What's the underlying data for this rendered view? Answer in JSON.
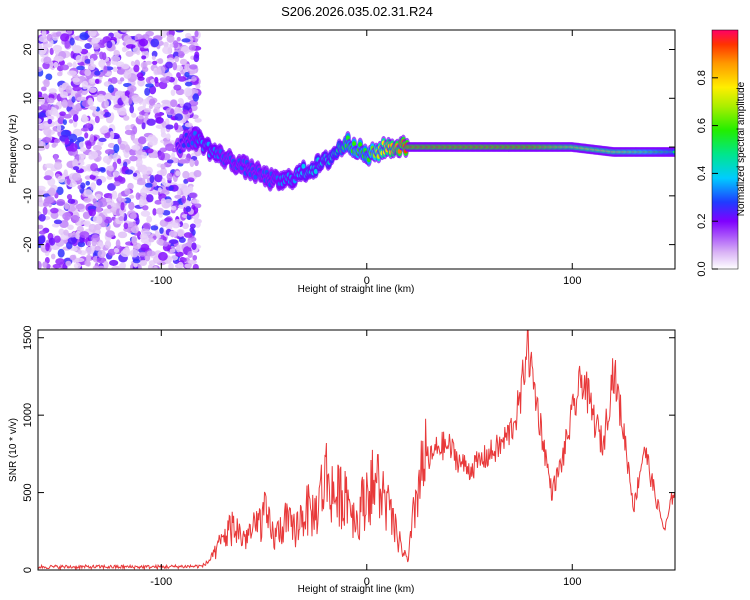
{
  "title": "S206.2026.035.02.31.R24",
  "chart_data": [
    {
      "type": "heatmap",
      "title": "S206.2026.035.02.31.R24",
      "xlabel": "Height of straight line (km)",
      "ylabel": "Frequency (Hz)",
      "xlim": [
        -160,
        150
      ],
      "ylim": [
        -25,
        24
      ],
      "xticks": [
        -100,
        0,
        100
      ],
      "yticks": [
        -20,
        -10,
        0,
        10,
        20
      ],
      "noise_region_x": [
        -160,
        -82
      ],
      "ridge": {
        "x": [
          -92,
          -85,
          -80,
          -75,
          -70,
          -65,
          -60,
          -55,
          -50,
          -45,
          -40,
          -35,
          -30,
          -25,
          -20,
          -15,
          -10,
          -5,
          0,
          5,
          10,
          20,
          40,
          60,
          80,
          100,
          120,
          140,
          150
        ],
        "freq": [
          0,
          2,
          1,
          -1,
          -2,
          -3,
          -4,
          -5,
          -6,
          -7,
          -7,
          -6,
          -5,
          -4,
          -3,
          -1,
          1,
          0,
          -2,
          -1,
          0,
          0,
          0,
          0,
          0,
          0,
          -1,
          -1,
          -1
        ],
        "amplitude": [
          0.25,
          0.3,
          0.35,
          0.35,
          0.3,
          0.3,
          0.3,
          0.3,
          0.3,
          0.3,
          0.35,
          0.35,
          0.4,
          0.4,
          0.4,
          0.45,
          0.55,
          0.6,
          0.55,
          0.7,
          0.8,
          0.95,
          0.95,
          0.95,
          0.95,
          0.8,
          0.75,
          0.6,
          0.5
        ]
      },
      "colorbar": {
        "label": "Normalized spectral amplitude",
        "range": [
          0,
          1
        ],
        "ticks": [
          0.0,
          0.2,
          0.4,
          0.6,
          0.8
        ]
      }
    },
    {
      "type": "line",
      "xlabel": "Height of straight line (km)",
      "ylabel": "SNR (10 * v/v)",
      "xlim": [
        -160,
        150
      ],
      "ylim": [
        0,
        1550
      ],
      "xticks": [
        -100,
        0,
        100
      ],
      "yticks": [
        0,
        500,
        1000,
        1500
      ],
      "series": [
        {
          "name": "SNR",
          "color": "#e8393a",
          "x": [
            -160,
            -100,
            -80,
            -75,
            -70,
            -65,
            -60,
            -55,
            -50,
            -45,
            -40,
            -35,
            -30,
            -25,
            -20,
            -15,
            -10,
            -5,
            0,
            5,
            10,
            15,
            20,
            25,
            30,
            35,
            40,
            45,
            50,
            55,
            60,
            65,
            70,
            75,
            78,
            80,
            85,
            90,
            95,
            100,
            105,
            110,
            115,
            120,
            125,
            130,
            135,
            140,
            145,
            150
          ],
          "y": [
            20,
            20,
            25,
            80,
            200,
            280,
            200,
            250,
            350,
            200,
            300,
            250,
            380,
            350,
            600,
            450,
            500,
            300,
            500,
            550,
            400,
            200,
            50,
            550,
            700,
            800,
            800,
            700,
            650,
            700,
            750,
            800,
            900,
            1100,
            1500,
            1300,
            900,
            500,
            700,
            1000,
            1250,
            1000,
            800,
            1300,
            900,
            400,
            800,
            500,
            250,
            550
          ]
        }
      ]
    }
  ]
}
